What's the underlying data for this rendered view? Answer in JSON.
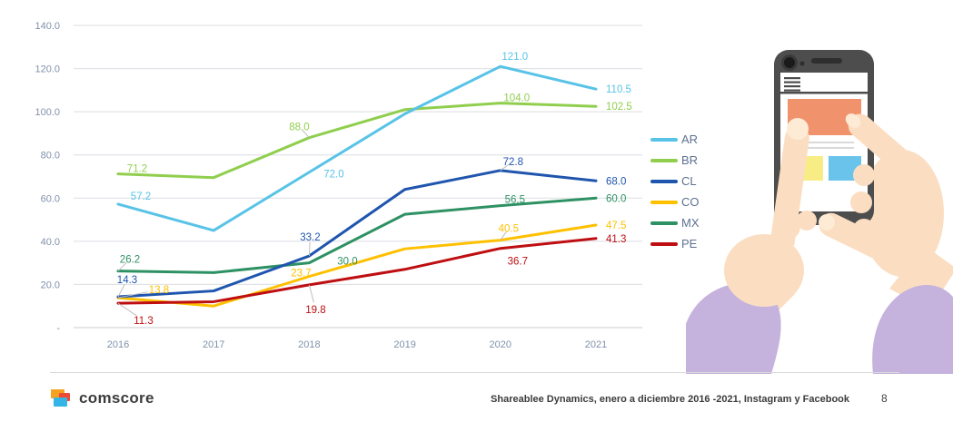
{
  "page": {
    "background": "#FFFFFF",
    "page_number": "8",
    "source_note": "Shareablee Dynamics, enero a diciembre 2016 -2021, Instagram y Facebook",
    "brand": {
      "logo_text": "comscore",
      "mark_colors": {
        "orange": "#F6A221",
        "red": "#EF4A36",
        "blue": "#35B5E5"
      }
    }
  },
  "chart_data": {
    "type": "line",
    "title": "",
    "x": [
      2016,
      2017,
      2018,
      2019,
      2020,
      2021
    ],
    "x_tick_labels": [
      "2016",
      "2017",
      "2018",
      "2019",
      "2020",
      "2021"
    ],
    "ylim": [
      0,
      140
    ],
    "y_ticks": [
      {
        "value": 140,
        "label": "140.0"
      },
      {
        "value": 120,
        "label": "120.0"
      },
      {
        "value": 100,
        "label": "100.0"
      },
      {
        "value": 80,
        "label": "80.0"
      },
      {
        "value": 60,
        "label": "60.0"
      },
      {
        "value": 40,
        "label": "40.0"
      },
      {
        "value": 20,
        "label": "20.0"
      },
      {
        "value": 0,
        "label": "-"
      }
    ],
    "grid": true,
    "legend_position": "right",
    "estimated_x_values": [
      2017,
      2019
    ],
    "tick_color": "#8191AC",
    "grid_color": "#DCDEE3",
    "draw_order": [
      1,
      4,
      3,
      5,
      2,
      0
    ],
    "series": [
      {
        "name": "AR",
        "color": "#58C3E7",
        "values": [
          57.2,
          45.0,
          72.0,
          99.0,
          121.0,
          110.5
        ],
        "point_labels": [
          {
            "year": 2016,
            "text": "57.2",
            "dx": 25,
            "dy": -9,
            "leader": false
          },
          {
            "year": 2018,
            "text": "72.0",
            "dx": 27,
            "dy": 2,
            "leader": false
          },
          {
            "year": 2020,
            "text": "121.0",
            "dx": 16,
            "dy": -11,
            "leader": false
          },
          {
            "year": 2021,
            "text": "110.5",
            "dx": 11,
            "dy": 0,
            "leader": false,
            "anchor": "start"
          }
        ]
      },
      {
        "name": "BR",
        "color": "#90CE4E",
        "values": [
          71.2,
          69.5,
          88.0,
          101.0,
          104.0,
          102.5
        ],
        "point_labels": [
          {
            "year": 2016,
            "text": "71.2",
            "dx": 21,
            "dy": -6,
            "leader": false
          },
          {
            "year": 2018,
            "text": "88.0",
            "dx": -11,
            "dy": -12,
            "leader": true
          },
          {
            "year": 2020,
            "text": "104.0",
            "dx": 18,
            "dy": -6,
            "leader": false
          },
          {
            "year": 2021,
            "text": "102.5",
            "dx": 11,
            "dy": 0,
            "leader": false,
            "anchor": "start"
          }
        ]
      },
      {
        "name": "CL",
        "color": "#1F55AE",
        "values": [
          14.3,
          17.0,
          33.2,
          64.0,
          72.8,
          68.0
        ],
        "point_labels": [
          {
            "year": 2016,
            "text": "14.3",
            "dx": 10,
            "dy": -19,
            "leader": true
          },
          {
            "year": 2018,
            "text": "33.2",
            "dx": 1,
            "dy": -21,
            "leader": true
          },
          {
            "year": 2020,
            "text": "72.8",
            "dx": 14,
            "dy": -10,
            "leader": true
          },
          {
            "year": 2021,
            "text": "68.0",
            "dx": 11,
            "dy": 0,
            "leader": false,
            "anchor": "start"
          }
        ]
      },
      {
        "name": "CO",
        "color": "#FFC000",
        "values": [
          13.8,
          10.0,
          23.7,
          36.5,
          40.5,
          47.5
        ],
        "point_labels": [
          {
            "year": 2016,
            "text": "13.8",
            "dx": 45,
            "dy": -9,
            "leader": true
          },
          {
            "year": 2018,
            "text": "23.7",
            "dx": -9,
            "dy": -4,
            "leader": false
          },
          {
            "year": 2020,
            "text": "40.5",
            "dx": 9,
            "dy": -13,
            "leader": true
          },
          {
            "year": 2021,
            "text": "47.5",
            "dx": 11,
            "dy": 0,
            "leader": false,
            "anchor": "start"
          }
        ]
      },
      {
        "name": "MX",
        "color": "#2E9164",
        "values": [
          26.2,
          25.5,
          30.0,
          52.5,
          56.5,
          60.0
        ],
        "point_labels": [
          {
            "year": 2016,
            "text": "26.2",
            "dx": 13,
            "dy": -13,
            "leader": true
          },
          {
            "year": 2018,
            "text": "30.0",
            "dx": 42,
            "dy": -2,
            "leader": false
          },
          {
            "year": 2020,
            "text": "56.5",
            "dx": 16,
            "dy": -7,
            "leader": false
          },
          {
            "year": 2021,
            "text": "60.0",
            "dx": 11,
            "dy": 0,
            "leader": false,
            "anchor": "start"
          }
        ]
      },
      {
        "name": "PE",
        "color": "#BE0E11",
        "values": [
          11.3,
          12.0,
          19.8,
          27.0,
          36.7,
          41.3
        ],
        "point_labels": [
          {
            "year": 2016,
            "text": "11.3",
            "dx": 28,
            "dy": 19,
            "leader": true
          },
          {
            "year": 2018,
            "text": "19.8",
            "dx": 7,
            "dy": 27,
            "leader": true
          },
          {
            "year": 2020,
            "text": "36.7",
            "dx": 19,
            "dy": 14,
            "leader": false
          },
          {
            "year": 2021,
            "text": "41.3",
            "dx": 11,
            "dy": 0,
            "leader": false,
            "anchor": "start"
          }
        ]
      }
    ]
  },
  "illustration": {
    "name": "hands-holding-smartphone",
    "colors": {
      "phone": "#4D4D4D",
      "screen": "#FFFFFF",
      "hero_block": "#F0926B",
      "yellow_block": "#F8ED85",
      "blue_block": "#69C3EA",
      "skin": "#FBDEC2",
      "nail": "#FDEBD6",
      "sleeve": "#C5B3DD",
      "text_line": "#D9D9D9"
    }
  }
}
